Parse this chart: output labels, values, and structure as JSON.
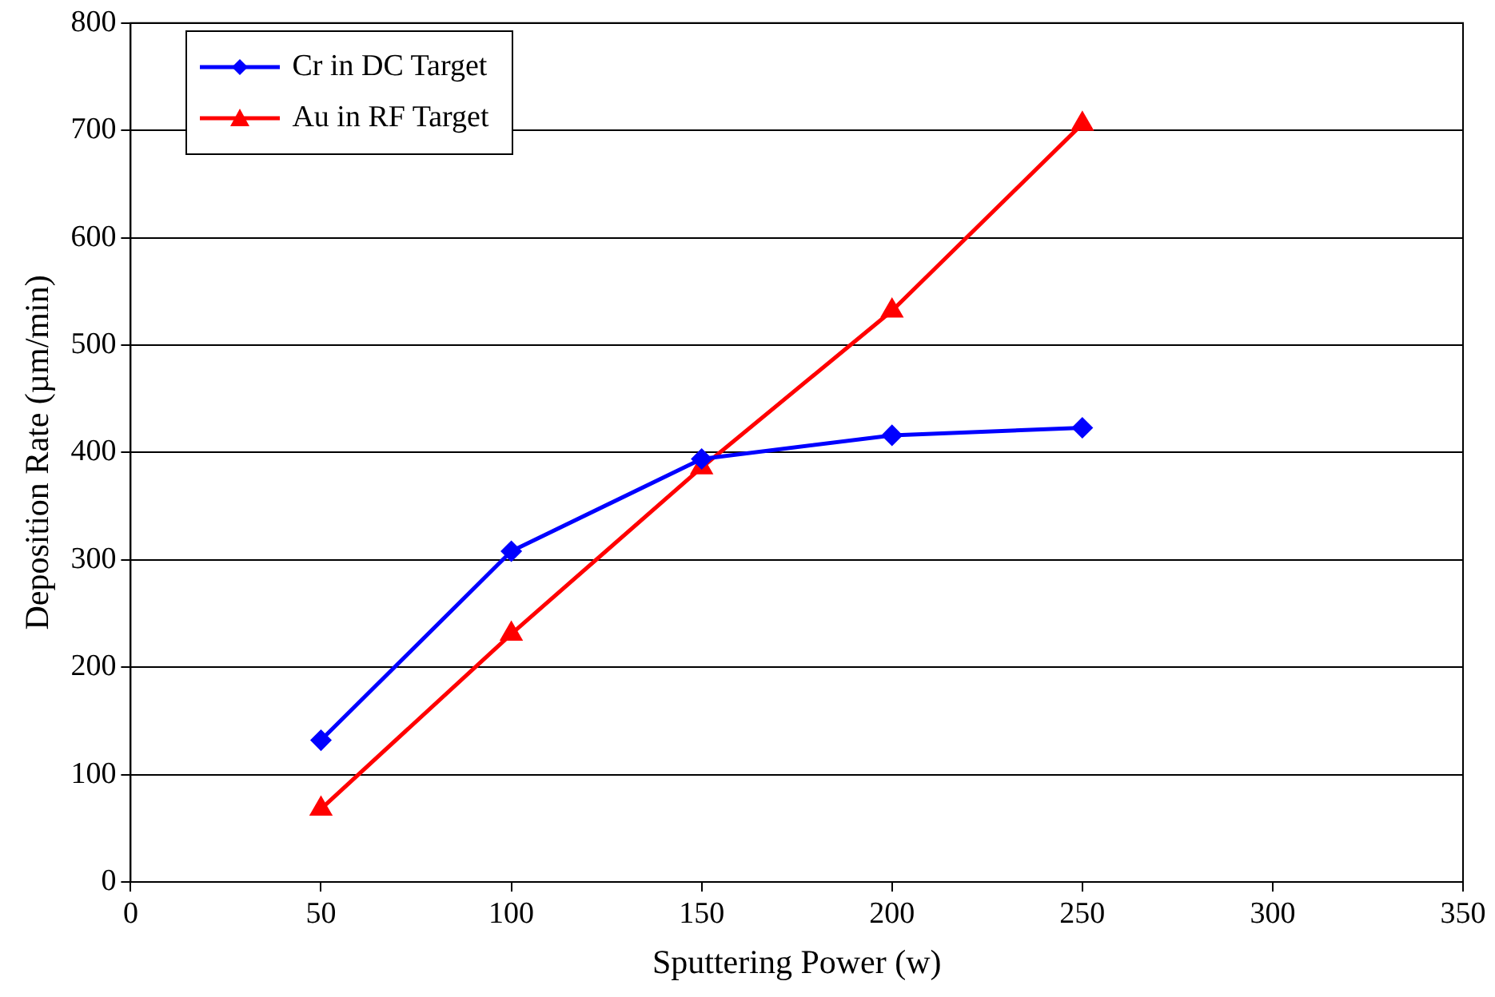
{
  "chart_data": {
    "type": "line",
    "xlabel": "Sputtering Power (w)",
    "ylabel": "Deposition Rate (µm/min)",
    "x": [
      50,
      100,
      150,
      200,
      250
    ],
    "series": [
      {
        "name": "Cr in DC Target",
        "color": "#0000ff",
        "marker": "diamond",
        "values": [
          132,
          308,
          394,
          416,
          423
        ]
      },
      {
        "name": "Au in RF Target",
        "color": "#ff0000",
        "marker": "triangle",
        "values": [
          68,
          231,
          386,
          532,
          706
        ]
      }
    ],
    "xlim": [
      0,
      350
    ],
    "xticks": [
      0,
      50,
      100,
      150,
      200,
      250,
      300,
      350
    ],
    "ylim": [
      0,
      800
    ],
    "yticks": [
      0,
      100,
      200,
      300,
      400,
      500,
      600,
      700,
      800
    ],
    "grid": "y",
    "legend": "top left"
  }
}
